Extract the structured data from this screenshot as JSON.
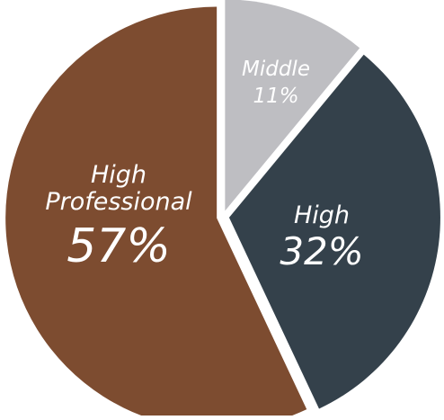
{
  "chart_data": {
    "type": "pie",
    "start_at": "top",
    "direction": "clockwise",
    "exploded": true,
    "slices": [
      {
        "label": "Middle",
        "value": 11,
        "value_label": "11%",
        "color": "#bebec2",
        "label_color": "#ffffff"
      },
      {
        "label": "High",
        "value": 32,
        "value_label": "32%",
        "color": "#34414b",
        "label_color": "#ffffff"
      },
      {
        "label": "High Professional",
        "label_lines": [
          "High",
          "Professional"
        ],
        "value": 57,
        "value_label": "57%",
        "color": "#7d4c30",
        "label_color": "#ffffff"
      }
    ]
  }
}
